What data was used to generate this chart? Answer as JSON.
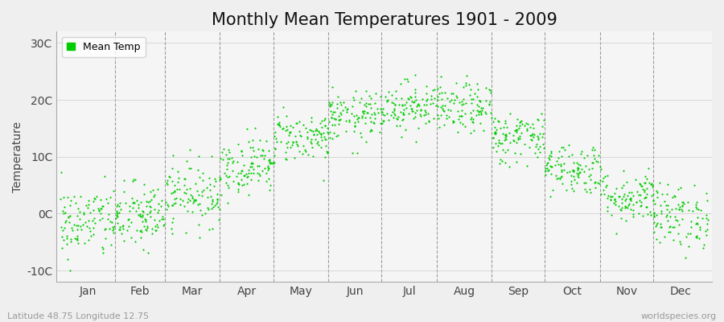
{
  "title": "Monthly Mean Temperatures 1901 - 2009",
  "ylabel": "Temperature",
  "ytick_labels": [
    "-10C",
    "0C",
    "10C",
    "20C",
    "30C"
  ],
  "ytick_values": [
    -10,
    0,
    10,
    20,
    30
  ],
  "ylim": [
    -12,
    32
  ],
  "months": [
    "Jan",
    "Feb",
    "Mar",
    "Apr",
    "May",
    "Jun",
    "Jul",
    "Aug",
    "Sep",
    "Oct",
    "Nov",
    "Dec"
  ],
  "legend_label": "Mean Temp",
  "dot_color": "#00cc00",
  "dot_size": 2.5,
  "bg_color": "#efefef",
  "plot_bg_color": "#f5f5f5",
  "grid_color": "#777777",
  "title_fontsize": 15,
  "axis_fontsize": 10,
  "tick_fontsize": 10,
  "footer_left": "Latitude 48.75 Longitude 12.75",
  "footer_right": "worldspecies.org",
  "monthly_means": [
    -1.5,
    -0.5,
    3.5,
    8.5,
    13.5,
    17.0,
    19.0,
    18.5,
    13.5,
    8.0,
    3.0,
    -0.5
  ],
  "monthly_stds": [
    3.2,
    3.0,
    2.8,
    2.5,
    2.2,
    2.2,
    2.2,
    2.2,
    2.3,
    2.3,
    2.3,
    2.8
  ],
  "n_years": 109,
  "seed": 42,
  "month_days": [
    31,
    28,
    31,
    30,
    31,
    30,
    31,
    31,
    30,
    31,
    30,
    31
  ]
}
